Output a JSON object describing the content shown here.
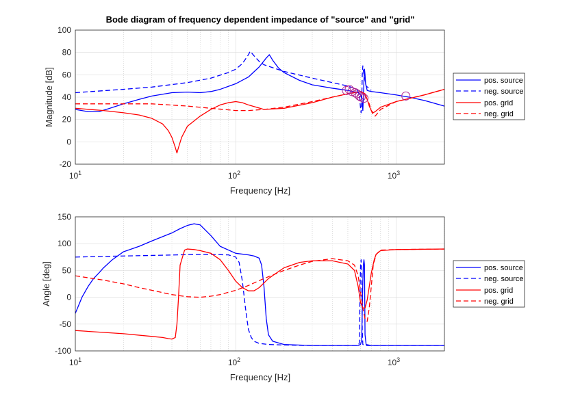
{
  "chart_data": [
    {
      "type": "line",
      "title": "Bode diagram of frequency dependent impedance of \"source\" and \"grid\"",
      "xlabel": "Frequency [Hz]",
      "ylabel": "Magnitude [dB]",
      "xscale": "log",
      "xlim": [
        10,
        2000
      ],
      "ylim": [
        -20,
        100
      ],
      "yticks": [
        -20,
        0,
        20,
        40,
        60,
        80,
        100
      ],
      "xticklabels": [
        "10^1",
        "10^2",
        "10^3"
      ],
      "grid": true,
      "legend_position": "outside-right",
      "series": [
        {
          "name": "pos. source",
          "color": "#0000ff",
          "dash": "solid",
          "x": [
            10,
            12,
            14,
            16,
            20,
            25,
            30,
            40,
            50,
            60,
            70,
            80,
            100,
            120,
            140,
            155,
            162,
            170,
            185,
            200,
            250,
            300,
            400,
            500,
            580,
            600,
            612,
            620,
            625,
            630,
            635,
            640,
            645,
            660,
            700,
            800,
            1000,
            1200,
            1500,
            2000
          ],
          "y": [
            29,
            27,
            27,
            29.5,
            34,
            38,
            41,
            44,
            44.5,
            44,
            45,
            47,
            52,
            58,
            67,
            75,
            78,
            73,
            66,
            62,
            55,
            51,
            48,
            46,
            44,
            42,
            38,
            28,
            40,
            55,
            65,
            60,
            52,
            46,
            45,
            44,
            42,
            40,
            37,
            32
          ]
        },
        {
          "name": "neg. source",
          "color": "#0000ff",
          "dash": "dashed",
          "x": [
            10,
            20,
            30,
            50,
            70,
            90,
            100,
            110,
            115,
            120,
            123,
            125,
            130,
            140,
            150,
            200,
            300,
            400,
            500,
            570,
            590,
            600,
            605,
            610,
            615,
            620,
            630,
            650,
            700
          ],
          "y": [
            44,
            47,
            49,
            53,
            57,
            62,
            65,
            70,
            74,
            78,
            81,
            80,
            77,
            72,
            69,
            63,
            57,
            53,
            50,
            47,
            42,
            30,
            26,
            35,
            60,
            68,
            60,
            50,
            46
          ]
        },
        {
          "name": "pos. grid",
          "color": "#ff0000",
          "dash": "solid",
          "x": [
            10,
            15,
            20,
            25,
            30,
            35,
            38,
            40,
            42,
            43,
            44,
            46,
            50,
            60,
            70,
            80,
            90,
            100,
            110,
            120,
            150,
            200,
            300,
            400,
            500,
            550,
            600,
            640,
            660,
            680,
            700,
            720,
            740,
            800,
            1000,
            1500,
            2000
          ],
          "y": [
            30,
            28,
            26,
            24,
            21,
            16,
            10,
            4,
            -5,
            -10,
            -5,
            4,
            14,
            23,
            29,
            33,
            35,
            36,
            35,
            33,
            29,
            30,
            35,
            40,
            43,
            44,
            45,
            43,
            38,
            32,
            28,
            26,
            27,
            31,
            36,
            42,
            47
          ]
        },
        {
          "name": "neg. grid",
          "color": "#ff0000",
          "dash": "dashed",
          "x": [
            10,
            20,
            30,
            50,
            70,
            100,
            120,
            150,
            200,
            300,
            400,
            500,
            600,
            620,
            640,
            660,
            680,
            700,
            720,
            740,
            760,
            800,
            1000,
            1500,
            2000
          ],
          "y": [
            34,
            34,
            34,
            32,
            30,
            28,
            28,
            29,
            31,
            36,
            40,
            43,
            45,
            44,
            42,
            38,
            34,
            28,
            24,
            23,
            25,
            29,
            36,
            42,
            47
          ]
        }
      ],
      "markers": [
        {
          "x": 490,
          "y": 46
        },
        {
          "x": 510,
          "y": 47
        },
        {
          "x": 530,
          "y": 45
        },
        {
          "x": 555,
          "y": 44
        },
        {
          "x": 570,
          "y": 43
        },
        {
          "x": 590,
          "y": 41
        },
        {
          "x": 605,
          "y": 40
        },
        {
          "x": 630,
          "y": 39
        },
        {
          "x": 1150,
          "y": 41
        }
      ]
    },
    {
      "type": "line",
      "xlabel": "Frequency [Hz]",
      "ylabel": "Angle [deg]",
      "xscale": "log",
      "xlim": [
        10,
        2000
      ],
      "ylim": [
        -100,
        150
      ],
      "yticks": [
        -100,
        -50,
        0,
        50,
        100,
        150
      ],
      "xticklabels": [
        "10^1",
        "10^2",
        "10^3"
      ],
      "grid": true,
      "legend_position": "outside-right",
      "series": [
        {
          "name": "pos. source",
          "color": "#0000ff",
          "dash": "solid",
          "x": [
            10,
            11,
            12,
            13,
            14,
            15,
            17,
            20,
            25,
            30,
            40,
            45,
            50,
            55,
            60,
            70,
            80,
            100,
            120,
            130,
            140,
            145,
            150,
            155,
            160,
            170,
            200,
            300,
            500,
            580,
            600,
            610,
            620,
            625,
            630,
            635,
            640,
            650,
            700,
            1000,
            2000
          ],
          "y": [
            -30,
            0,
            20,
            35,
            45,
            55,
            70,
            85,
            95,
            105,
            120,
            128,
            134,
            137,
            135,
            115,
            95,
            82,
            79,
            77,
            73,
            60,
            20,
            -40,
            -70,
            -82,
            -88,
            -90,
            -90,
            -90,
            -88,
            -80,
            30,
            60,
            70,
            60,
            -70,
            -88,
            -90,
            -90,
            -90
          ]
        },
        {
          "name": "neg. source",
          "color": "#0000ff",
          "dash": "dashed",
          "x": [
            10,
            20,
            30,
            50,
            70,
            90,
            100,
            105,
            110,
            113,
            115,
            118,
            120,
            125,
            130,
            140,
            160,
            200,
            300,
            500,
            580,
            590,
            595,
            600,
            605,
            610,
            615,
            620,
            640,
            700,
            1000,
            2000
          ],
          "y": [
            75,
            77,
            78,
            79.5,
            80,
            79,
            75,
            65,
            30,
            0,
            -20,
            -45,
            -60,
            -75,
            -82,
            -86,
            -88,
            -89,
            -90,
            -90,
            -90,
            -85,
            0,
            60,
            70,
            50,
            -60,
            -88,
            -90,
            -90,
            -90,
            -90
          ]
        },
        {
          "name": "pos. grid",
          "color": "#ff0000",
          "dash": "solid",
          "x": [
            10,
            20,
            30,
            35,
            38,
            40,
            42,
            43,
            44,
            45,
            48,
            50,
            55,
            60,
            70,
            80,
            90,
            100,
            110,
            120,
            130,
            140,
            160,
            200,
            250,
            300,
            400,
            500,
            550,
            580,
            600,
            620,
            640,
            660,
            680,
            700,
            730,
            750,
            800,
            1000,
            2000
          ],
          "y": [
            -62,
            -68,
            -73,
            -75,
            -77,
            -78,
            -75,
            -50,
            0,
            60,
            88,
            90,
            89,
            87,
            82,
            70,
            50,
            30,
            18,
            12,
            12,
            18,
            35,
            55,
            65,
            68,
            68,
            62,
            50,
            20,
            -10,
            -20,
            -20,
            -5,
            20,
            45,
            70,
            80,
            87,
            89,
            90
          ]
        },
        {
          "name": "neg. grid",
          "color": "#ff0000",
          "dash": "dashed",
          "x": [
            10,
            15,
            20,
            25,
            30,
            40,
            50,
            60,
            70,
            80,
            100,
            120,
            150,
            200,
            250,
            300,
            400,
            500,
            550,
            580,
            600,
            620,
            640,
            660,
            680,
            700,
            720,
            750,
            800,
            1000,
            2000
          ],
          "y": [
            40,
            32,
            25,
            18,
            13,
            5,
            1,
            0,
            2,
            5,
            13,
            22,
            35,
            50,
            60,
            67,
            72,
            68,
            60,
            40,
            10,
            -20,
            -40,
            -45,
            -20,
            20,
            60,
            80,
            88,
            89,
            90
          ]
        }
      ]
    }
  ]
}
